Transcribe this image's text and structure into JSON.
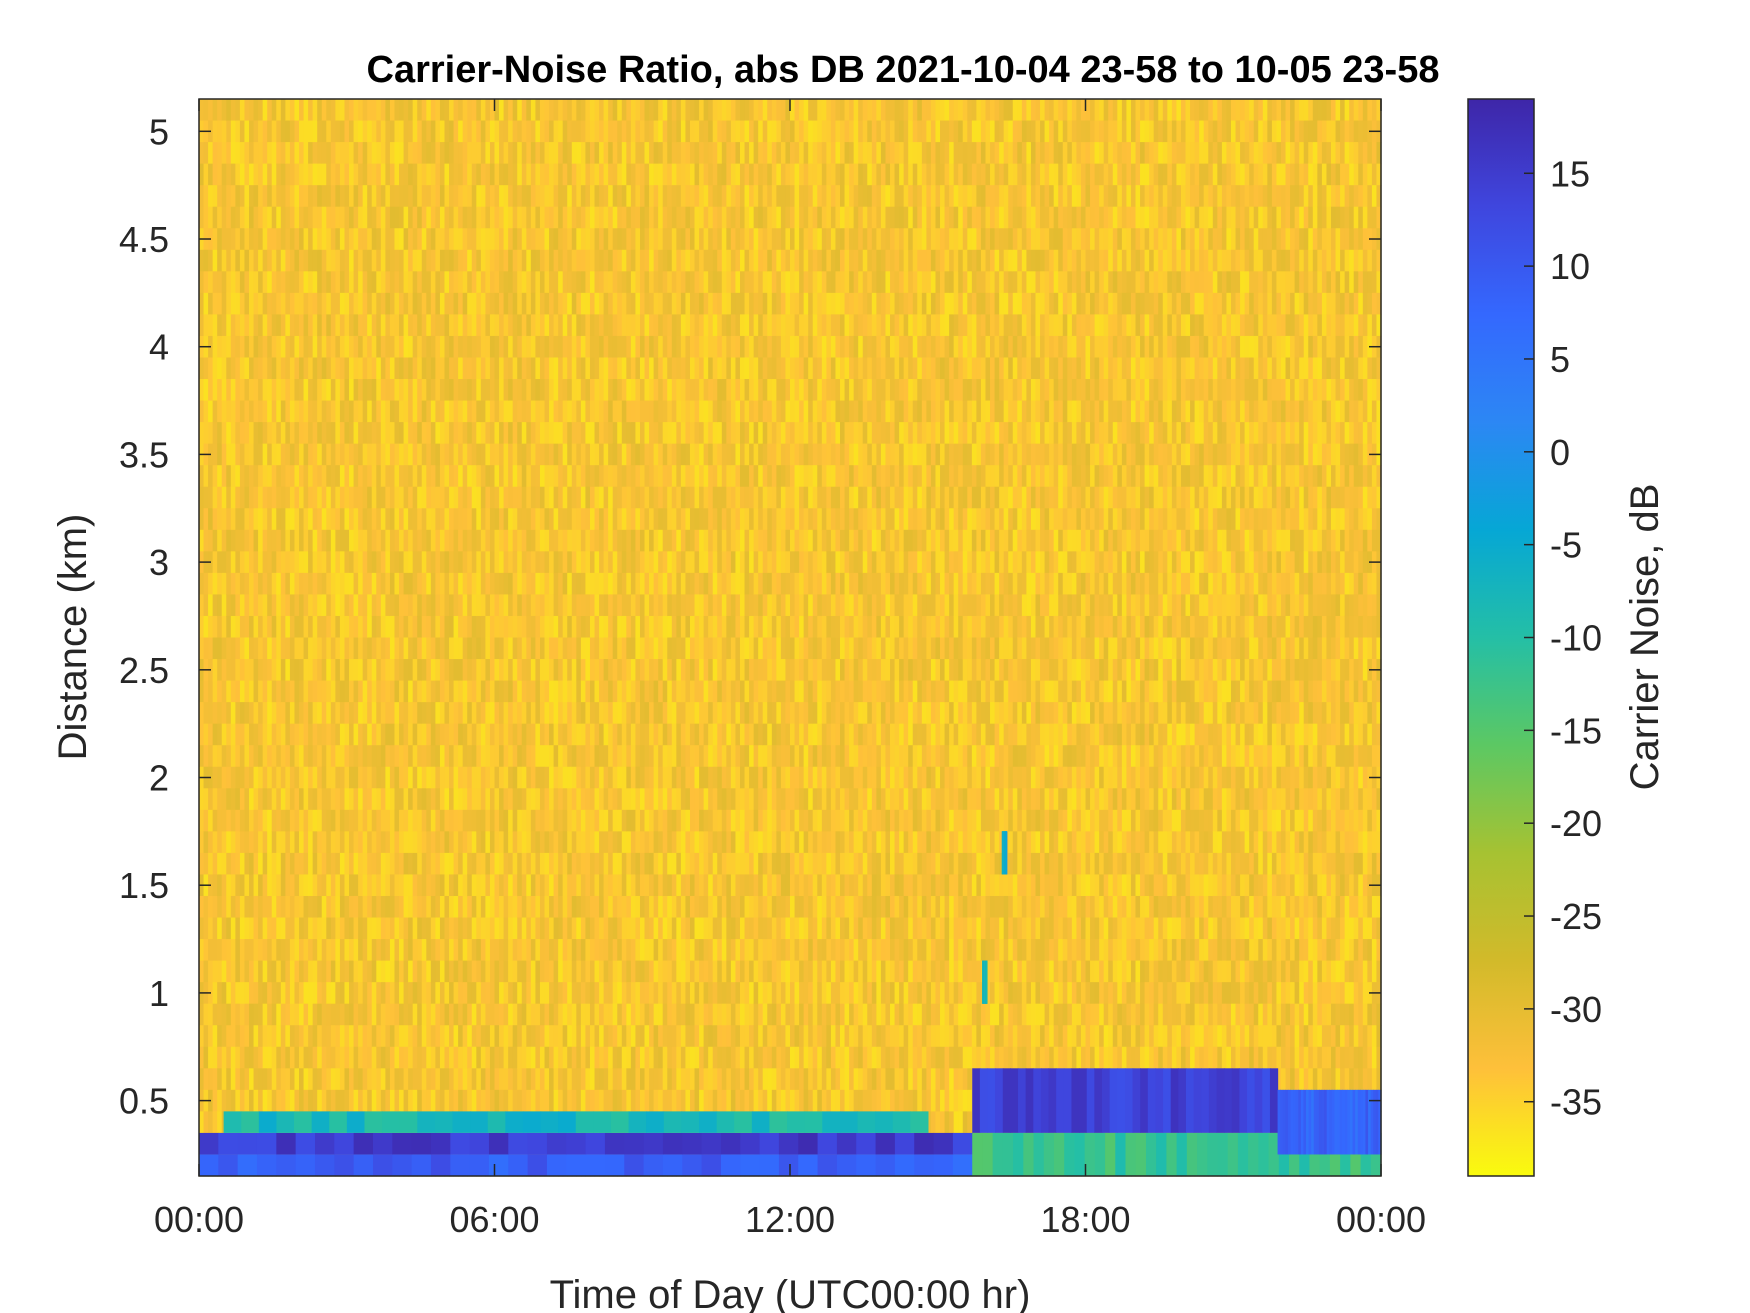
{
  "chart_data": {
    "type": "heatmap",
    "title": "Carrier-Noise Ratio, abs DB 2021-10-04 23-58 to 10-05 23-58",
    "xlabel": "Time of Day (UTC00:00 hr)",
    "ylabel": "Distance (km)",
    "colorbar_label": "Carrier Noise, dB",
    "x_ticks": [
      0,
      6,
      12,
      18,
      24
    ],
    "x_tick_labels": [
      "00:00",
      "06:00",
      "12:00",
      "18:00",
      "00:00"
    ],
    "xlim": [
      0,
      24
    ],
    "y_ticks": [
      0.5,
      1,
      1.5,
      2,
      2.5,
      3,
      3.5,
      4,
      4.5,
      5
    ],
    "y_tick_labels": [
      "0.5",
      "1",
      "1.5",
      "2",
      "2.5",
      "3",
      "3.5",
      "4",
      "4.5",
      "5"
    ],
    "ylim": [
      0.15,
      5.15
    ],
    "color_ticks": [
      15,
      10,
      5,
      0,
      -5,
      -10,
      -15,
      -20,
      -25,
      -30,
      -35
    ],
    "color_tick_labels": [
      "15",
      "10",
      "5",
      "0",
      "-5",
      "-10",
      "-15",
      "-20",
      "-25",
      "-30",
      "-35"
    ],
    "clim": [
      -39,
      19
    ],
    "colormap": "parula",
    "colormap_stops": [
      "#f9fb0e",
      "#fec03a",
      "#d2ba2a",
      "#a6c232",
      "#5cc863",
      "#24bfa6",
      "#06a7d5",
      "#2c87f4",
      "#3468fe",
      "#3f46de",
      "#3e26a8"
    ],
    "background_level_db": -33,
    "features": [
      {
        "region": "lowest gate",
        "distance_km": [
          0.15,
          0.25
        ],
        "time_hr": [
          0,
          15.7
        ],
        "level_db": 9
      },
      {
        "region": "second gate",
        "distance_km": [
          0.25,
          0.35
        ],
        "time_hr": [
          0,
          15.7
        ],
        "level_db": 15
      },
      {
        "region": "third gate",
        "distance_km": [
          0.35,
          0.45
        ],
        "time_hr": [
          0.5,
          14.8
        ],
        "level_db": -8
      },
      {
        "region": "evening layer",
        "distance_km": [
          0.35,
          0.65
        ],
        "time_hr": [
          15.7,
          21.9
        ],
        "level_db": 14
      },
      {
        "region": "lower gates evening",
        "distance_km": [
          0.15,
          0.35
        ],
        "time_hr": [
          15.7,
          24
        ],
        "level_db": -12
      },
      {
        "region": "late layer",
        "distance_km": [
          0.25,
          0.55
        ],
        "time_hr": [
          21.9,
          24
        ],
        "level_db": 8
      },
      {
        "region": "spike",
        "distance_km": [
          1.55,
          1.75
        ],
        "time_hr": [
          16.3,
          16.4
        ],
        "level_db": -5
      },
      {
        "region": "spike",
        "distance_km": [
          0.95,
          1.15
        ],
        "time_hr": [
          15.9,
          16.0
        ],
        "level_db": -8
      }
    ]
  }
}
